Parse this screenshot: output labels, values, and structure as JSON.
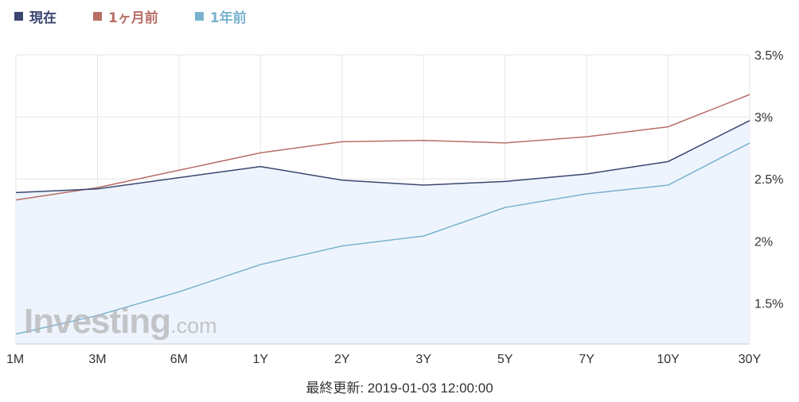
{
  "legend": [
    {
      "label": "現在",
      "color": "#3a4670"
    },
    {
      "label": "1ヶ月前",
      "color": "#b86f66"
    },
    {
      "label": "1年前",
      "color": "#7ab3cf"
    }
  ],
  "watermark": {
    "main": "Investing",
    "tld": ".com"
  },
  "footer": {
    "updated": "最終更新: 2019-01-03 12:00:00"
  },
  "colors": {
    "grid": "#e6e6e6",
    "area_fill": "#eef4fd",
    "axis_text": "#333333"
  },
  "chart_data": {
    "type": "line",
    "categories": [
      "1M",
      "3M",
      "6M",
      "1Y",
      "2Y",
      "3Y",
      "5Y",
      "7Y",
      "10Y",
      "30Y"
    ],
    "series": [
      {
        "name": "現在",
        "color": "#3a4670",
        "fill": true,
        "values": [
          2.39,
          2.42,
          2.51,
          2.6,
          2.49,
          2.45,
          2.48,
          2.54,
          2.64,
          2.97
        ]
      },
      {
        "name": "1ヶ月前",
        "color": "#b86f66",
        "fill": false,
        "values": [
          2.33,
          2.43,
          2.57,
          2.71,
          2.8,
          2.81,
          2.79,
          2.84,
          2.92,
          3.18
        ]
      },
      {
        "name": "1年前",
        "color": "#7ab3cf",
        "fill": false,
        "values": [
          1.25,
          1.4,
          1.59,
          1.81,
          1.96,
          2.04,
          2.27,
          2.38,
          2.45,
          2.79
        ]
      }
    ],
    "y_ticks": [
      {
        "value": 1.5,
        "label": "1.5%"
      },
      {
        "value": 2.0,
        "label": "2%"
      },
      {
        "value": 2.5,
        "label": "2.5%"
      },
      {
        "value": 3.0,
        "label": "3%"
      },
      {
        "value": 3.5,
        "label": "3.5%"
      }
    ],
    "ylim": [
      1.17,
      3.5
    ],
    "grid": true,
    "legend_position": "top-left",
    "y_axis_position": "right"
  }
}
